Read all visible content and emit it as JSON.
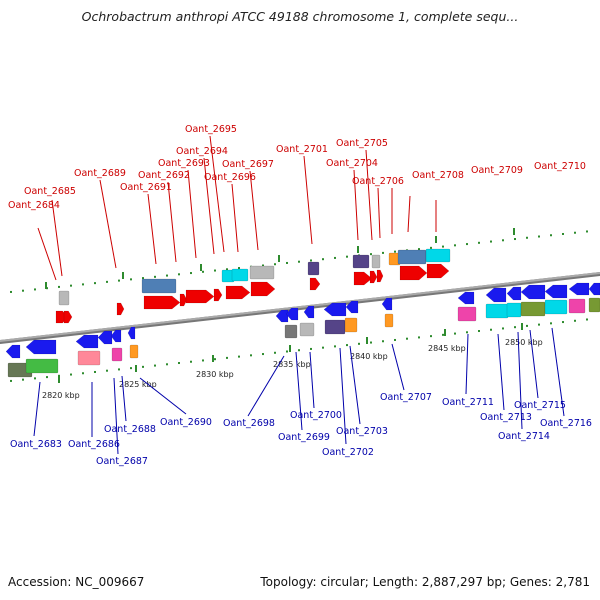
{
  "title": "Ochrobactrum anthropi ATCC 49188 chromosome 1, complete sequ...",
  "footer": {
    "accession": "Accession: NC_009667",
    "summary": "Topology: circular; Length: 2,887,297 bp; Genes: 2,781"
  },
  "colors": {
    "top_label": "#cc0000",
    "bottom_label": "#0000aa",
    "forward_arrow": "#ee0000",
    "reverse_arrow": "#1a1aee",
    "tick_mark": "#2e8b2e",
    "backbone": "#7a7a7a"
  },
  "scale_ticks": [
    "2820 kbp",
    "2825 kbp",
    "2830 kbp",
    "2835 kbp",
    "2840 kbp",
    "2845 kbp",
    "2850 kbp"
  ],
  "top_genes": [
    "Oant_2684",
    "Oant_2685",
    "Oant_2689",
    "Oant_2691",
    "Oant_2692",
    "Oant_2693",
    "Oant_2694",
    "Oant_2695",
    "Oant_2696",
    "Oant_2697",
    "Oant_2701",
    "Oant_2704",
    "Oant_2705",
    "Oant_2706",
    "Oant_2708",
    "Oant_2709",
    "Oant_2710"
  ],
  "bottom_genes": [
    "Oant_2683",
    "Oant_2686",
    "Oant_2687",
    "Oant_2688",
    "Oant_2690",
    "Oant_2698",
    "Oant_2699",
    "Oant_2700",
    "Oant_2702",
    "Oant_2703",
    "Oant_2707",
    "Oant_2711",
    "Oant_2713",
    "Oant_2714",
    "Oant_2715",
    "Oant_2716"
  ]
}
